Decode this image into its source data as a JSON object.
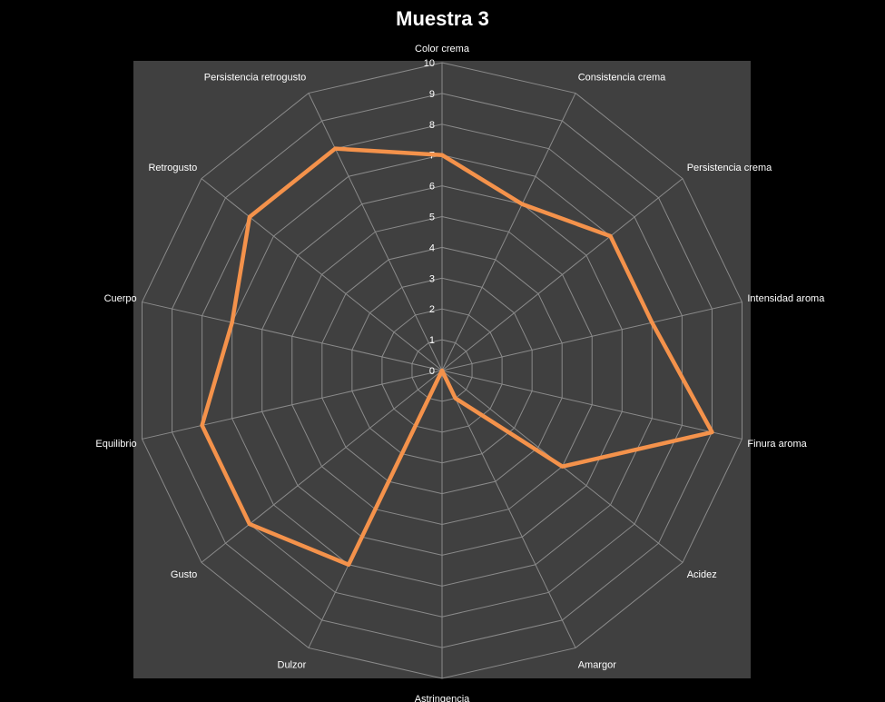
{
  "chart_data": {
    "type": "radar",
    "title": "Muestra 3",
    "categories": [
      "Color crema",
      "Consistencia crema",
      "Persistencia crema",
      "Intensidad aroma",
      "Finura aroma",
      "Acidez",
      "Amargor",
      "Astringencia",
      "Dulzor",
      "Gusto",
      "Equilibrio",
      "Cuerpo",
      "Retrogusto",
      "Persistencia retrogusto"
    ],
    "series": [
      {
        "values": [
          7,
          6,
          7,
          7,
          9,
          5,
          1,
          0,
          7,
          8,
          8,
          7,
          8,
          8
        ]
      }
    ],
    "rlim": [
      0,
      10
    ],
    "ticks": [
      0,
      1,
      2,
      3,
      4,
      5,
      6,
      7,
      8,
      9,
      10
    ],
    "grid": true,
    "colors": {
      "background": "#000000",
      "plot_area": "#404040",
      "grid": "#8a8a8a",
      "series": "#F4924B",
      "text": "#ffffff"
    }
  }
}
